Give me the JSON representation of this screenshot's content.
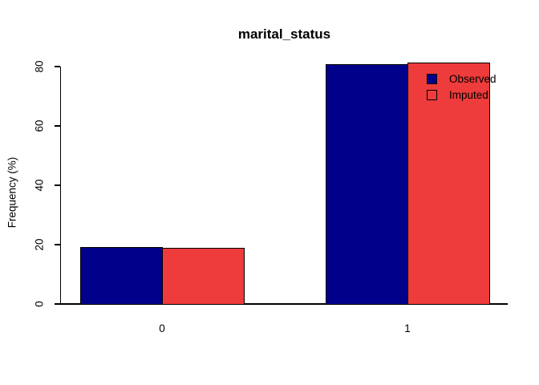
{
  "colors": {
    "observed_bar": "#00008B",
    "imputed_bar": "#EE3B3B",
    "axis": "#000000",
    "background": "#FFFFFF",
    "text": "#000000"
  },
  "legend": {
    "items": [
      {
        "label": "Observed",
        "fill": "#00008B"
      },
      {
        "label": "Imputed",
        "fill": "transparent"
      }
    ]
  },
  "chart_data": {
    "type": "bar",
    "title": "marital_status",
    "categories": [
      "0",
      "1"
    ],
    "series": [
      {
        "name": "Observed",
        "color": "#00008B",
        "values": [
          19.2,
          80.8
        ]
      },
      {
        "name": "Imputed",
        "color": "#EE3B3B",
        "values": [
          18.9,
          81.4
        ]
      }
    ],
    "xlabel": "",
    "ylabel": "Frequency (%)",
    "ylim": [
      0,
      80
    ],
    "yticks": [
      0,
      20,
      40,
      60,
      80
    ],
    "grid": false,
    "legend_position": "top-right-inside",
    "bar_border_color": "#000000"
  }
}
